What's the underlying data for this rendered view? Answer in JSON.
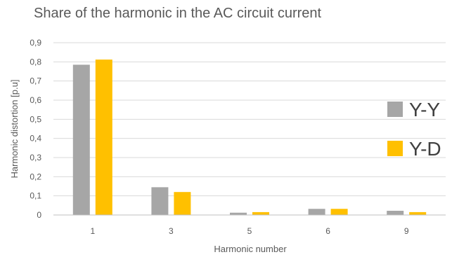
{
  "chart_data": {
    "type": "bar",
    "title": "Share of the harmonic in the AC circuit current",
    "xlabel": "Harmonic number",
    "ylabel": "Harmonic distortion [p.u]",
    "categories": [
      "1",
      "3",
      "5",
      "6",
      "9"
    ],
    "series": [
      {
        "name": "Y-Y",
        "color": "#a6a6a6",
        "values": [
          0.785,
          0.145,
          0.012,
          0.032,
          0.022
        ]
      },
      {
        "name": "Y-D",
        "color": "#ffc000",
        "values": [
          0.812,
          0.12,
          0.015,
          0.032,
          0.015
        ]
      }
    ],
    "ylim": [
      0,
      0.9
    ],
    "yticks": [
      "0",
      "0,1",
      "0,2",
      "0,3",
      "0,4",
      "0,5",
      "0,6",
      "0,7",
      "0,8",
      "0,9"
    ],
    "grid": true,
    "legend_position": "right"
  }
}
